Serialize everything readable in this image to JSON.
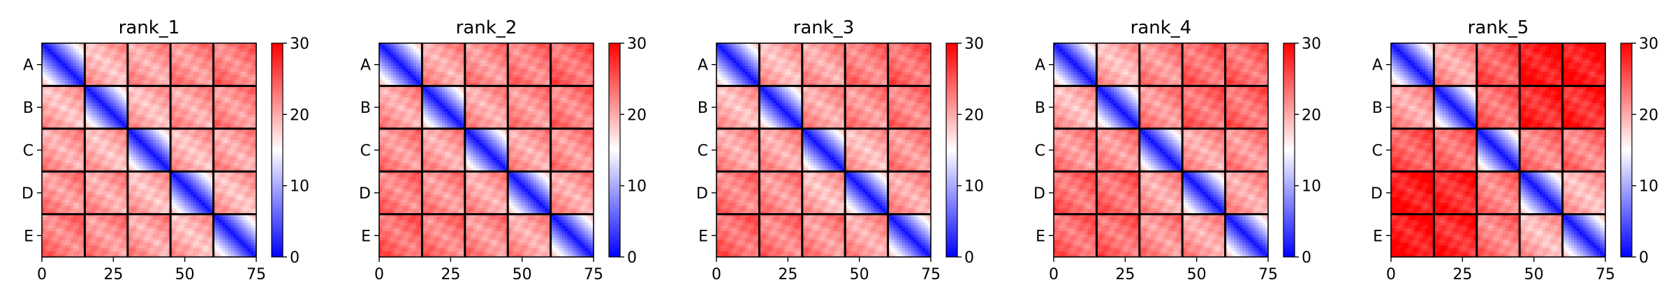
{
  "chart_data": [
    {
      "type": "heatmap",
      "title": "rank_1",
      "xlabel": "",
      "ylabel": "",
      "x_ticks": [
        0,
        25,
        50,
        75
      ],
      "xlim": [
        0,
        75
      ],
      "y_tick_labels": [
        "A",
        "B",
        "C",
        "D",
        "E"
      ],
      "block_boundaries": [
        15,
        30,
        45,
        60
      ],
      "colorbar": {
        "ticks": [
          0,
          10,
          20,
          30
        ],
        "range": [
          0,
          30
        ],
        "colormap": "bwr"
      },
      "colors": {
        "low": "#0000ff",
        "mid": "#ffffff",
        "high": "#ff0000"
      },
      "block_mean_distance": [
        [
          6,
          20,
          21,
          22,
          23
        ],
        [
          20,
          6,
          20,
          21,
          22
        ],
        [
          21,
          20,
          6,
          20,
          21
        ],
        [
          22,
          21,
          20,
          6,
          20
        ],
        [
          23,
          22,
          21,
          20,
          6
        ]
      ]
    },
    {
      "type": "heatmap",
      "title": "rank_2",
      "xlabel": "",
      "ylabel": "",
      "x_ticks": [
        0,
        25,
        50,
        75
      ],
      "xlim": [
        0,
        75
      ],
      "y_tick_labels": [
        "A",
        "B",
        "C",
        "D",
        "E"
      ],
      "block_boundaries": [
        15,
        30,
        45,
        60
      ],
      "colorbar": {
        "ticks": [
          0,
          10,
          20,
          30
        ],
        "range": [
          0,
          30
        ],
        "colormap": "bwr"
      },
      "colors": {
        "low": "#0000ff",
        "mid": "#ffffff",
        "high": "#ff0000"
      },
      "block_mean_distance": [
        [
          6,
          21,
          22,
          23,
          24
        ],
        [
          21,
          6,
          21,
          22,
          23
        ],
        [
          22,
          21,
          6,
          21,
          22
        ],
        [
          23,
          22,
          21,
          6,
          21
        ],
        [
          24,
          23,
          22,
          21,
          6
        ]
      ]
    },
    {
      "type": "heatmap",
      "title": "rank_3",
      "xlabel": "",
      "ylabel": "",
      "x_ticks": [
        0,
        25,
        50,
        75
      ],
      "xlim": [
        0,
        75
      ],
      "y_tick_labels": [
        "A",
        "B",
        "C",
        "D",
        "E"
      ],
      "block_boundaries": [
        15,
        30,
        45,
        60
      ],
      "colorbar": {
        "ticks": [
          0,
          10,
          20,
          30
        ],
        "range": [
          0,
          30
        ],
        "colormap": "bwr"
      },
      "colors": {
        "low": "#0000ff",
        "mid": "#ffffff",
        "high": "#ff0000"
      },
      "block_mean_distance": [
        [
          6,
          20,
          21,
          23,
          24
        ],
        [
          20,
          6,
          21,
          22,
          23
        ],
        [
          21,
          21,
          6,
          20,
          22
        ],
        [
          23,
          22,
          20,
          6,
          21
        ],
        [
          24,
          23,
          22,
          21,
          6
        ]
      ]
    },
    {
      "type": "heatmap",
      "title": "rank_4",
      "xlabel": "",
      "ylabel": "",
      "x_ticks": [
        0,
        25,
        50,
        75
      ],
      "xlim": [
        0,
        75
      ],
      "y_tick_labels": [
        "A",
        "B",
        "C",
        "D",
        "E"
      ],
      "block_boundaries": [
        15,
        30,
        45,
        60
      ],
      "colorbar": {
        "ticks": [
          0,
          10,
          20,
          30
        ],
        "range": [
          0,
          30
        ],
        "colormap": "bwr"
      },
      "colors": {
        "low": "#0000ff",
        "mid": "#ffffff",
        "high": "#ff0000"
      },
      "block_mean_distance": [
        [
          6,
          20,
          22,
          24,
          24
        ],
        [
          20,
          6,
          22,
          24,
          24
        ],
        [
          22,
          22,
          6,
          21,
          22
        ],
        [
          24,
          24,
          21,
          6,
          21
        ],
        [
          24,
          24,
          22,
          21,
          6
        ]
      ]
    },
    {
      "type": "heatmap",
      "title": "rank_5",
      "xlabel": "",
      "ylabel": "",
      "x_ticks": [
        0,
        25,
        50,
        75
      ],
      "xlim": [
        0,
        75
      ],
      "y_tick_labels": [
        "A",
        "B",
        "C",
        "D",
        "E"
      ],
      "block_boundaries": [
        15,
        30,
        45,
        60
      ],
      "colorbar": {
        "ticks": [
          0,
          10,
          20,
          30
        ],
        "range": [
          0,
          30
        ],
        "colormap": "bwr"
      },
      "colors": {
        "low": "#0000ff",
        "mid": "#ffffff",
        "high": "#ff0000"
      },
      "block_mean_distance": [
        [
          6,
          21,
          25,
          29,
          29
        ],
        [
          21,
          6,
          24,
          28,
          28
        ],
        [
          25,
          24,
          6,
          23,
          23
        ],
        [
          29,
          28,
          23,
          6,
          20
        ],
        [
          29,
          28,
          23,
          20,
          6
        ]
      ]
    }
  ]
}
